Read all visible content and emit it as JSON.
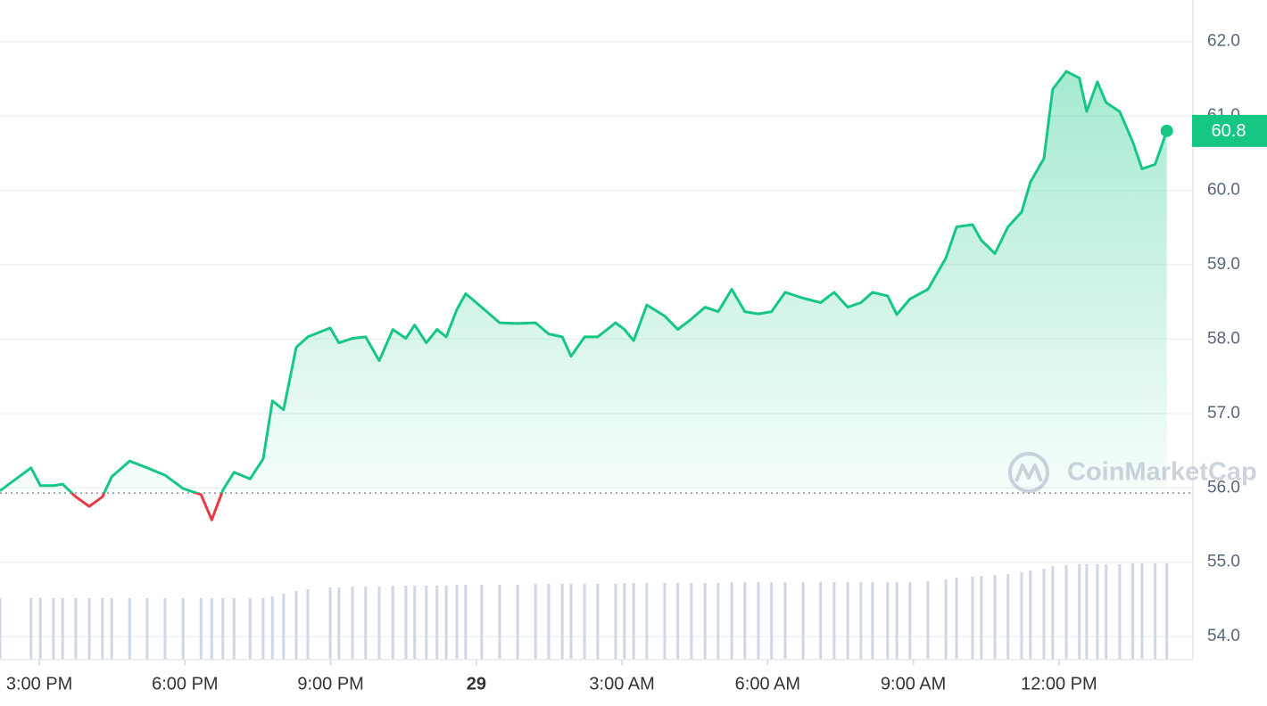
{
  "chart_data": {
    "type": "line",
    "watermark": "CoinMarketCap",
    "color": "#16c784",
    "below_color": "#ea3943",
    "baseline": 55.93,
    "x": [
      14.19,
      14.83,
      15.02,
      15.29,
      15.48,
      15.75,
      16.03,
      16.3,
      16.49,
      16.86,
      17.22,
      17.59,
      17.96,
      18.33,
      18.55,
      18.78,
      19.01,
      19.34,
      19.61,
      19.8,
      20.03,
      20.29,
      20.53,
      20.99,
      21.17,
      21.45,
      21.72,
      22.0,
      22.28,
      22.55,
      22.73,
      22.97,
      23.19,
      23.38,
      23.6,
      23.78,
      24.11,
      24.48,
      24.85,
      25.22,
      25.49,
      25.77,
      25.95,
      26.23,
      26.5,
      26.87,
      27.05,
      27.24,
      27.51,
      27.88,
      28.15,
      28.43,
      28.71,
      28.98,
      29.26,
      29.53,
      29.81,
      30.08,
      30.36,
      30.73,
      31.09,
      31.37,
      31.65,
      31.92,
      32.16,
      32.47,
      32.66,
      32.93,
      33.3,
      33.67,
      33.89,
      34.22,
      34.4,
      34.68,
      34.95,
      35.23,
      35.41,
      35.69,
      35.87,
      36.15,
      36.42,
      36.57,
      36.79,
      36.97,
      37.25,
      37.52,
      37.71,
      37.98,
      38.22
    ],
    "values": [
      55.96,
      56.27,
      56.03,
      56.03,
      56.05,
      55.88,
      55.75,
      55.88,
      56.15,
      56.36,
      56.27,
      56.17,
      55.99,
      55.91,
      55.57,
      55.97,
      56.21,
      56.12,
      56.39,
      57.17,
      57.05,
      57.89,
      58.03,
      58.15,
      57.95,
      58.01,
      58.03,
      57.71,
      58.13,
      58.01,
      58.19,
      57.95,
      58.13,
      58.03,
      58.4,
      58.61,
      58.43,
      58.22,
      58.21,
      58.22,
      58.07,
      58.03,
      57.77,
      58.03,
      58.03,
      58.22,
      58.13,
      57.98,
      58.46,
      58.31,
      58.13,
      58.27,
      58.43,
      58.37,
      58.67,
      58.37,
      58.34,
      58.37,
      58.63,
      58.55,
      58.49,
      58.63,
      58.43,
      58.49,
      58.63,
      58.58,
      58.33,
      58.54,
      58.67,
      59.09,
      59.51,
      59.54,
      59.33,
      59.15,
      59.51,
      59.71,
      60.11,
      60.43,
      61.36,
      61.6,
      61.51,
      61.06,
      61.46,
      61.18,
      61.06,
      60.65,
      60.29,
      60.35,
      60.8
    ],
    "volume": {
      "color": "#cfd6e4",
      "lim": [
        0,
        300
      ],
      "values": [
        69,
        69,
        69,
        69,
        69,
        69,
        69,
        69,
        69,
        69,
        69,
        69,
        69,
        69,
        69,
        69,
        69,
        69,
        69,
        71,
        74,
        77,
        79,
        81,
        81,
        82,
        82,
        82,
        83,
        83,
        83,
        83,
        83,
        83,
        84,
        84,
        84,
        84,
        84,
        85,
        85,
        85,
        85,
        85,
        85,
        85,
        86,
        86,
        86,
        86,
        86,
        86,
        86,
        86,
        87,
        87,
        87,
        87,
        87,
        87,
        87,
        87,
        87,
        87,
        87,
        87,
        87,
        87,
        88,
        90,
        92,
        93,
        94,
        95,
        96,
        98,
        100,
        102,
        105,
        106,
        107,
        107,
        107,
        107,
        107,
        108,
        108,
        108,
        108
      ]
    },
    "xlim": [
      14.19,
      38.74
    ],
    "ylim": [
      53.69,
      62.56
    ],
    "xticks": [
      {
        "value": 15,
        "label": "3:00 PM"
      },
      {
        "value": 18,
        "label": "6:00 PM"
      },
      {
        "value": 21,
        "label": "9:00 PM"
      },
      {
        "value": 24,
        "label": "29"
      },
      {
        "value": 27,
        "label": "3:00 AM"
      },
      {
        "value": 30,
        "label": "6:00 AM"
      },
      {
        "value": 33,
        "label": "9:00 AM"
      },
      {
        "value": 36,
        "label": "12:00 PM"
      }
    ],
    "yticks": [
      {
        "value": 54,
        "label": "54.0"
      },
      {
        "value": 55,
        "label": "55.0"
      },
      {
        "value": 56,
        "label": "56.0"
      },
      {
        "value": 57,
        "label": "57.0"
      },
      {
        "value": 58,
        "label": "58.0"
      },
      {
        "value": 59,
        "label": "59.0"
      },
      {
        "value": 60,
        "label": "60.0"
      },
      {
        "value": 61,
        "label": "61.0"
      },
      {
        "value": 62,
        "label": "62.0"
      }
    ],
    "grid": true
  }
}
